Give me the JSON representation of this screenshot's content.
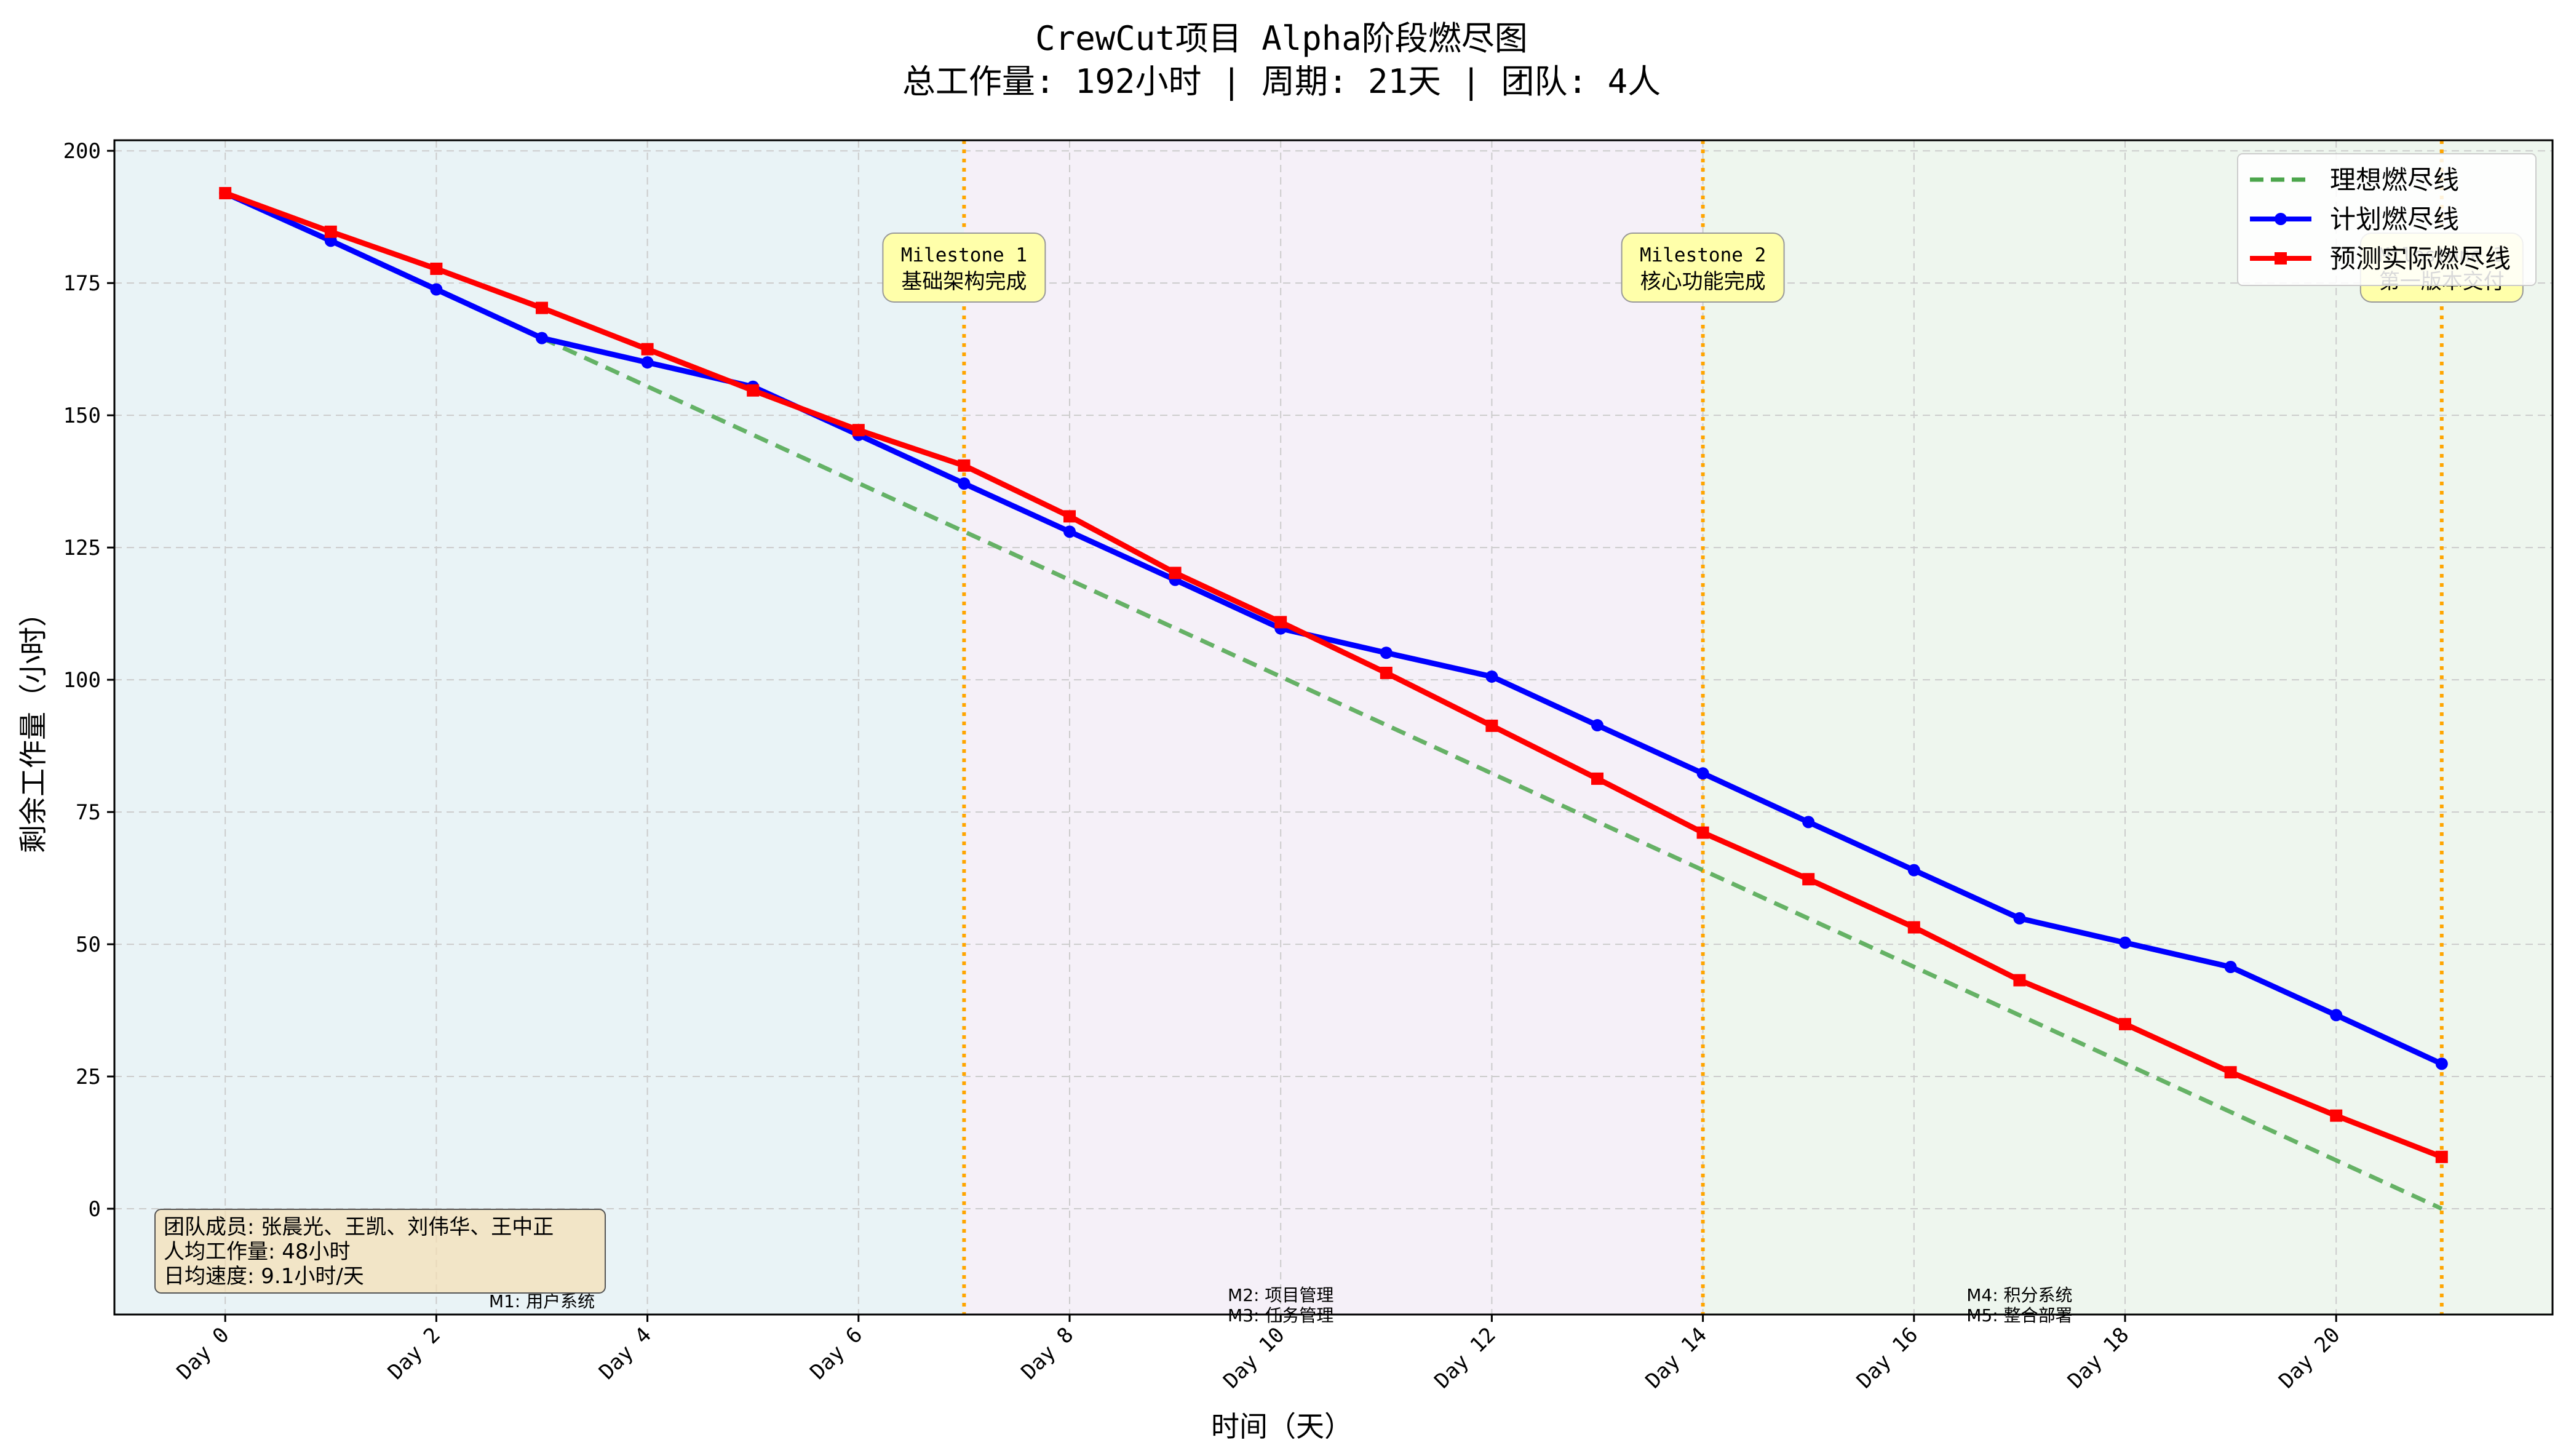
{
  "title_line1": "CrewCut项目 Alpha阶段燃尽图",
  "title_line2": "总工作量: 192小时 | 周期: 21天 | 团队: 4人",
  "chart_data": {
    "type": "line",
    "xlabel": "时间（天）",
    "ylabel": "剩余工作量（小时）",
    "xlim": [
      -1.05,
      22.05
    ],
    "ylim": [
      -20,
      202
    ],
    "x_tick_values": [
      0,
      2,
      4,
      6,
      8,
      10,
      12,
      14,
      16,
      18,
      20
    ],
    "x_tick_labels": [
      "Day 0",
      "Day 2",
      "Day 4",
      "Day 6",
      "Day 8",
      "Day 10",
      "Day 12",
      "Day 14",
      "Day 16",
      "Day 18",
      "Day 20"
    ],
    "y_ticks": [
      0,
      25,
      50,
      75,
      100,
      125,
      150,
      175,
      200
    ],
    "grid": true,
    "legend_position": "top-right",
    "series": [
      {
        "name": "理想燃尽线",
        "color": "#4ca64c",
        "style": "dashed",
        "marker": "none",
        "x": [
          3,
          21
        ],
        "values": [
          164.6,
          0
        ]
      },
      {
        "name": "计划燃尽线",
        "color": "#0000ff",
        "style": "solid",
        "marker": "circle",
        "x": [
          0,
          1,
          2,
          3,
          4,
          5,
          6,
          7,
          8,
          9,
          10,
          11,
          12,
          13,
          14,
          15,
          16,
          17,
          18,
          19,
          20,
          21
        ],
        "values": [
          192,
          183,
          173.8,
          164.6,
          160,
          155.4,
          146.3,
          137.1,
          128,
          118.9,
          109.7,
          105.1,
          100.6,
          91.4,
          82.3,
          73.1,
          64,
          54.9,
          50.3,
          45.7,
          36.6,
          27.4
        ]
      },
      {
        "name": "预测实际燃尽线",
        "color": "#ff0000",
        "style": "solid",
        "marker": "square",
        "x": [
          0,
          1,
          2,
          3,
          4,
          5,
          6,
          7,
          8,
          9,
          10,
          11,
          12,
          13,
          14,
          15,
          16,
          17,
          18,
          19,
          20,
          21
        ],
        "values": [
          192,
          184.7,
          177.7,
          170.3,
          162.5,
          154.7,
          147.2,
          140.5,
          130.9,
          120.2,
          110.9,
          101.3,
          91.3,
          81.3,
          71.1,
          62.3,
          53.2,
          43.2,
          34.9,
          25.8,
          17.6,
          9.8
        ]
      }
    ],
    "milestone_lines": [
      7,
      14,
      21
    ],
    "milestone_labels": [
      {
        "x": 7,
        "lines": [
          "Milestone 1",
          "基础架构完成"
        ]
      },
      {
        "x": 14,
        "lines": [
          "Milestone 2",
          "核心功能完成"
        ]
      },
      {
        "x": 21,
        "lines": [
          "Milestone 3",
          "第一版本交付"
        ]
      }
    ],
    "phases": [
      {
        "x0": -1.05,
        "x1": 7,
        "color": "#e9f3f6"
      },
      {
        "x0": 7,
        "x1": 14,
        "color": "#f5f0f8"
      },
      {
        "x0": 14,
        "x1": 22.05,
        "color": "#eef6ee"
      }
    ],
    "module_labels": [
      {
        "x": 3,
        "lines": [
          "M1: 用户系统"
        ]
      },
      {
        "x": 10,
        "lines": [
          "M2: 项目管理",
          "M3: 任务管理"
        ]
      },
      {
        "x": 17,
        "lines": [
          "M4: 积分系统",
          "M5: 整合部署"
        ]
      }
    ],
    "info_box": [
      "团队成员: 张晨光、王凯、刘伟华、王中正",
      "人均工作量: 48小时",
      "日均速度: 9.1小时/天"
    ]
  },
  "colors": {
    "milestone": "#ffa500",
    "annotation_fill": "#ffffaa",
    "info_fill": "#f5deb3",
    "grid": "#cccccc"
  }
}
